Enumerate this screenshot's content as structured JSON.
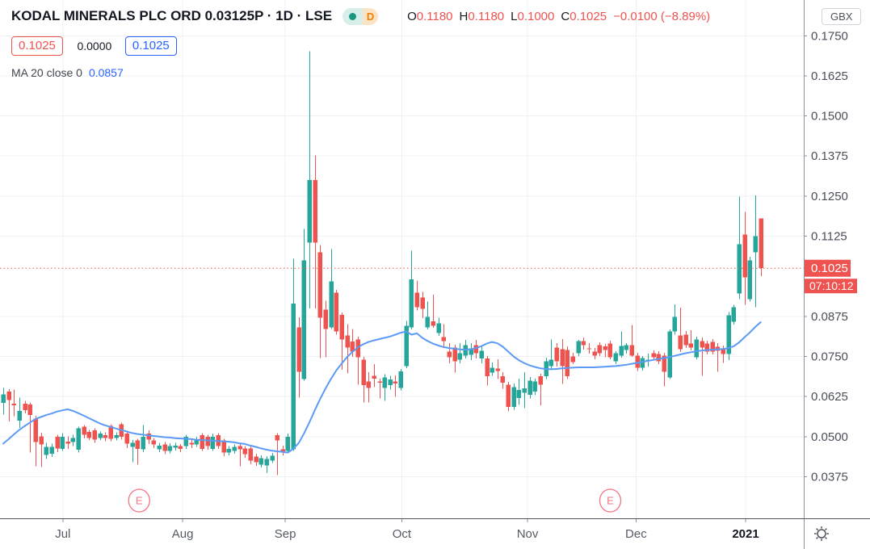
{
  "header": {
    "title": "KODAL MINERALS PLC ORD 0.03125P · 1D · LSE",
    "interval_badge": "D",
    "ohlc": {
      "items": [
        {
          "label": "O",
          "value": "0.1180"
        },
        {
          "label": "H",
          "value": "0.1180"
        },
        {
          "label": "L",
          "value": "0.1000"
        },
        {
          "label": "C",
          "value": "0.1025"
        }
      ],
      "change": "−0.0100 (−8.89%)"
    },
    "sell_price": "0.1025",
    "spread": "0.0000",
    "buy_price": "0.1025",
    "ma_label": "MA 20 close 0",
    "ma_value": "0.0857"
  },
  "price_axis": {
    "currency": "GBX",
    "last_price_label": "0.1025",
    "countdown": "07:10:12",
    "labels": [
      {
        "text": "0.1750",
        "price": 0.175
      },
      {
        "text": "0.1625",
        "price": 0.1625
      },
      {
        "text": "0.1500",
        "price": 0.15
      },
      {
        "text": "0.1375",
        "price": 0.1375
      },
      {
        "text": "0.1250",
        "price": 0.125
      },
      {
        "text": "0.1125",
        "price": 0.1125
      },
      {
        "text": "0.0875",
        "price": 0.0875
      },
      {
        "text": "0.0750",
        "price": 0.075
      },
      {
        "text": "0.0625",
        "price": 0.0625
      },
      {
        "text": "0.0500",
        "price": 0.05
      },
      {
        "text": "0.0375",
        "price": 0.0375
      }
    ]
  },
  "time_axis": {
    "labels": [
      {
        "text": "Jul",
        "index": 11.1,
        "bold": false
      },
      {
        "text": "Aug",
        "index": 33.4,
        "bold": false
      },
      {
        "text": "Sep",
        "index": 52.5,
        "bold": false
      },
      {
        "text": "Oct",
        "index": 74.2,
        "bold": false
      },
      {
        "text": "Nov",
        "index": 97.6,
        "bold": false
      },
      {
        "text": "Dec",
        "index": 117.8,
        "bold": false
      },
      {
        "text": "2021",
        "index": 138.2,
        "bold": true
      }
    ]
  },
  "chart_data": {
    "type": "candlestick",
    "symbol": "KODAL MINERALS PLC ORD 0.03125P",
    "interval": "1D",
    "exchange": "LSE",
    "currency": "GBX",
    "title": "KODAL MINERALS PLC ORD 0.03125P · 1D · LSE",
    "ylim": [
      0.0375,
      0.175
    ],
    "last_price": 0.1025,
    "last_ohlc": {
      "open": 0.118,
      "high": 0.118,
      "low": 0.1,
      "close": 0.1025,
      "change": -0.01,
      "change_pct": -8.89
    },
    "ma20_current": 0.0857,
    "earnings_marker_indices": [
      25.3,
      113
    ],
    "candles": [
      [
        0.0605,
        0.0652,
        0.0569,
        0.0632
      ],
      [
        0.064,
        0.0648,
        0.0547,
        0.0614
      ],
      [
        0.0602,
        0.0647,
        0.0564,
        0.0598
      ],
      [
        0.055,
        0.0622,
        0.0527,
        0.058
      ],
      [
        0.0603,
        0.0612,
        0.0572,
        0.0583
      ],
      [
        0.06,
        0.0606,
        0.045,
        0.0567
      ],
      [
        0.0556,
        0.0565,
        0.0408,
        0.0483
      ],
      [
        0.0501,
        0.0512,
        0.0405,
        0.0476
      ],
      [
        0.0443,
        0.0481,
        0.043,
        0.0468
      ],
      [
        0.0447,
        0.0478,
        0.0436,
        0.0468
      ],
      [
        0.05,
        0.0506,
        0.0452,
        0.0463
      ],
      [
        0.0462,
        0.0511,
        0.0455,
        0.05
      ],
      [
        0.0484,
        0.0501,
        0.0461,
        0.0478
      ],
      [
        0.0483,
        0.0506,
        0.047,
        0.0496
      ],
      [
        0.0459,
        0.0531,
        0.045,
        0.0526
      ],
      [
        0.0531,
        0.0536,
        0.0494,
        0.0506
      ],
      [
        0.0514,
        0.0521,
        0.0489,
        0.0496
      ],
      [
        0.052,
        0.0526,
        0.0481,
        0.049
      ],
      [
        0.0496,
        0.0516,
        0.0489,
        0.0509
      ],
      [
        0.0505,
        0.0513,
        0.0486,
        0.0495
      ],
      [
        0.0533,
        0.0538,
        0.0486,
        0.0493
      ],
      [
        0.0495,
        0.0513,
        0.0488,
        0.0505
      ],
      [
        0.0538,
        0.0543,
        0.0491,
        0.05
      ],
      [
        0.051,
        0.0516,
        0.0464,
        0.0478
      ],
      [
        0.0468,
        0.0489,
        0.042,
        0.048
      ],
      [
        0.0488,
        0.0493,
        0.0412,
        0.0462
      ],
      [
        0.046,
        0.0536,
        0.0452,
        0.05
      ],
      [
        0.051,
        0.0519,
        0.0477,
        0.049
      ],
      [
        0.0488,
        0.0496,
        0.0464,
        0.0476
      ],
      [
        0.046,
        0.0481,
        0.0451,
        0.0472
      ],
      [
        0.0476,
        0.0483,
        0.0445,
        0.0455
      ],
      [
        0.0455,
        0.0479,
        0.0448,
        0.047
      ],
      [
        0.0465,
        0.0481,
        0.0457,
        0.0472
      ],
      [
        0.047,
        0.0477,
        0.0451,
        0.0462
      ],
      [
        0.047,
        0.0506,
        0.0461,
        0.05
      ],
      [
        0.048,
        0.0493,
        0.0464,
        0.0476
      ],
      [
        0.0476,
        0.0499,
        0.0468,
        0.049
      ],
      [
        0.0505,
        0.0511,
        0.0455,
        0.0462
      ],
      [
        0.05,
        0.0506,
        0.0459,
        0.047
      ],
      [
        0.0462,
        0.0509,
        0.0455,
        0.05
      ],
      [
        0.0505,
        0.0511,
        0.0461,
        0.047
      ],
      [
        0.0488,
        0.0493,
        0.0439,
        0.045
      ],
      [
        0.045,
        0.0471,
        0.0441,
        0.0462
      ],
      [
        0.0455,
        0.0476,
        0.0447,
        0.0468
      ],
      [
        0.047,
        0.0479,
        0.0408,
        0.046
      ],
      [
        0.0463,
        0.0471,
        0.0434,
        0.0445
      ],
      [
        0.0463,
        0.0469,
        0.0414,
        0.0425
      ],
      [
        0.0438,
        0.0446,
        0.0409,
        0.042
      ],
      [
        0.0413,
        0.0441,
        0.0404,
        0.0433
      ],
      [
        0.041,
        0.0439,
        0.0386,
        0.043
      ],
      [
        0.0425,
        0.0449,
        0.0417,
        0.044
      ],
      [
        0.0505,
        0.0511,
        0.038,
        0.0488
      ],
      [
        0.046,
        0.0472,
        0.0441,
        0.045
      ],
      [
        0.0455,
        0.0509,
        0.0449,
        0.05
      ],
      [
        0.046,
        0.1055,
        0.0455,
        0.0915
      ],
      [
        0.084,
        0.0872,
        0.0622,
        0.0702
      ],
      [
        0.068,
        0.1148,
        0.0675,
        0.105
      ],
      [
        0.1105,
        0.1702,
        0.09,
        0.13
      ],
      [
        0.13,
        0.1377,
        0.09,
        0.1105
      ],
      [
        0.1075,
        0.1098,
        0.0745,
        0.0871
      ],
      [
        0.0896,
        0.0924,
        0.0747,
        0.0836
      ],
      [
        0.0841,
        0.1085,
        0.0835,
        0.0984
      ],
      [
        0.0949,
        0.0958,
        0.0818,
        0.0828
      ],
      [
        0.0879,
        0.0887,
        0.0708,
        0.0803
      ],
      [
        0.0816,
        0.0851,
        0.0697,
        0.0778
      ],
      [
        0.0796,
        0.0836,
        0.0749,
        0.0765
      ],
      [
        0.0803,
        0.0811,
        0.0662,
        0.0748
      ],
      [
        0.074,
        0.0749,
        0.0607,
        0.066
      ],
      [
        0.0672,
        0.0701,
        0.0606,
        0.0652
      ],
      [
        0.069,
        0.0726,
        0.0654,
        0.0681
      ],
      [
        0.0672,
        0.0681,
        0.0619,
        0.0668
      ],
      [
        0.0652,
        0.0694,
        0.0611,
        0.0685
      ],
      [
        0.066,
        0.0689,
        0.0647,
        0.0678
      ],
      [
        0.0672,
        0.0691,
        0.0624,
        0.0665
      ],
      [
        0.0652,
        0.0711,
        0.0644,
        0.0703
      ],
      [
        0.072,
        0.0861,
        0.0714,
        0.0846
      ],
      [
        0.0841,
        0.108,
        0.0834,
        0.099
      ],
      [
        0.0949,
        0.0986,
        0.0893,
        0.0904
      ],
      [
        0.0934,
        0.0951,
        0.0869,
        0.0899
      ],
      [
        0.0841,
        0.0921,
        0.0834,
        0.0873
      ],
      [
        0.086,
        0.0943,
        0.0839,
        0.0846
      ],
      [
        0.0823,
        0.0871,
        0.0814,
        0.0853
      ],
      [
        0.081,
        0.0851,
        0.0779,
        0.0798
      ],
      [
        0.0765,
        0.0791,
        0.0729,
        0.0748
      ],
      [
        0.0777,
        0.0786,
        0.0699,
        0.0735
      ],
      [
        0.074,
        0.0791,
        0.0729,
        0.076
      ],
      [
        0.0753,
        0.0801,
        0.0744,
        0.0785
      ],
      [
        0.0755,
        0.0791,
        0.0739,
        0.0775
      ],
      [
        0.0785,
        0.0801,
        0.0744,
        0.076
      ],
      [
        0.0743,
        0.0781,
        0.0729,
        0.0768
      ],
      [
        0.0743,
        0.0751,
        0.0659,
        0.0688
      ],
      [
        0.07,
        0.0731,
        0.0689,
        0.0715
      ],
      [
        0.0712,
        0.0741,
        0.0679,
        0.0705
      ],
      [
        0.0688,
        0.0701,
        0.0649,
        0.0668
      ],
      [
        0.0662,
        0.0671,
        0.0579,
        0.0592
      ],
      [
        0.0592,
        0.0666,
        0.0584,
        0.0654
      ],
      [
        0.062,
        0.0681,
        0.0599,
        0.0645
      ],
      [
        0.0637,
        0.0701,
        0.0589,
        0.065
      ],
      [
        0.063,
        0.0686,
        0.0619,
        0.0675
      ],
      [
        0.064,
        0.0681,
        0.0629,
        0.0672
      ],
      [
        0.0688,
        0.0696,
        0.0597,
        0.0662
      ],
      [
        0.0688,
        0.0746,
        0.0679,
        0.0735
      ],
      [
        0.072,
        0.0803,
        0.0709,
        0.074
      ],
      [
        0.0777,
        0.0791,
        0.0719,
        0.0735
      ],
      [
        0.0772,
        0.0804,
        0.0664,
        0.072
      ],
      [
        0.077,
        0.0781,
        0.0679,
        0.0688
      ],
      [
        0.075,
        0.0761,
        0.0726,
        0.0732
      ],
      [
        0.076,
        0.0801,
        0.0751,
        0.0798
      ],
      [
        0.0798,
        0.0809,
        0.0771,
        0.0785
      ],
      [
        0.0775,
        0.0791,
        0.0759,
        0.0772
      ],
      [
        0.0765,
        0.0776,
        0.0741,
        0.0752
      ],
      [
        0.0785,
        0.0794,
        0.0751,
        0.076
      ],
      [
        0.0782,
        0.0789,
        0.0748,
        0.077
      ],
      [
        0.079,
        0.0799,
        0.0741,
        0.0748
      ],
      [
        0.0735,
        0.0766,
        0.0726,
        0.076
      ],
      [
        0.0753,
        0.0828,
        0.0746,
        0.0783
      ],
      [
        0.077,
        0.0791,
        0.0759,
        0.0785
      ],
      [
        0.0785,
        0.0848,
        0.0749,
        0.0753
      ],
      [
        0.0752,
        0.0761,
        0.0704,
        0.0715
      ],
      [
        0.0715,
        0.0751,
        0.0706,
        0.0745
      ],
      [
        0.0735,
        0.0759,
        0.0719,
        0.074
      ],
      [
        0.076,
        0.0769,
        0.0739,
        0.0748
      ],
      [
        0.0758,
        0.0766,
        0.0726,
        0.0735
      ],
      [
        0.0752,
        0.0761,
        0.0657,
        0.0702
      ],
      [
        0.0685,
        0.0834,
        0.0679,
        0.0828
      ],
      [
        0.0828,
        0.0912,
        0.0818,
        0.0873
      ],
      [
        0.0816,
        0.0902,
        0.0764,
        0.0772
      ],
      [
        0.0818,
        0.0829,
        0.0776,
        0.0785
      ],
      [
        0.079,
        0.0832,
        0.0769,
        0.0778
      ],
      [
        0.0748,
        0.0811,
        0.0741,
        0.0803
      ],
      [
        0.0798,
        0.0809,
        0.069,
        0.0778
      ],
      [
        0.079,
        0.0799,
        0.0756,
        0.0765
      ],
      [
        0.0795,
        0.0804,
        0.0756,
        0.0765
      ],
      [
        0.078,
        0.0791,
        0.0702,
        0.0768
      ],
      [
        0.0775,
        0.0784,
        0.073,
        0.0757
      ],
      [
        0.0757,
        0.0889,
        0.0739,
        0.0878
      ],
      [
        0.0858,
        0.0911,
        0.0849,
        0.0904
      ],
      [
        0.0946,
        0.1249,
        0.0929,
        0.11
      ],
      [
        0.113,
        0.1201,
        0.0911,
        0.0997
      ],
      [
        0.0929,
        0.1061,
        0.0921,
        0.105
      ],
      [
        0.1075,
        0.1252,
        0.0904,
        0.1125
      ],
      [
        0.118,
        0.118,
        0.1,
        0.1025
      ]
    ],
    "ma20": [
      0.0478,
      0.0492,
      0.0507,
      0.0521,
      0.0533,
      0.0544,
      0.0555,
      0.0561,
      0.0567,
      0.0572,
      0.0578,
      0.0582,
      0.0585,
      0.058,
      0.0573,
      0.0565,
      0.0557,
      0.0549,
      0.0541,
      0.0535,
      0.053,
      0.0525,
      0.052,
      0.0516,
      0.0511,
      0.0508,
      0.0506,
      0.0504,
      0.0502,
      0.05,
      0.0498,
      0.0497,
      0.0495,
      0.0494,
      0.0493,
      0.0492,
      0.049,
      0.0489,
      0.0488,
      0.0487,
      0.0486,
      0.0485,
      0.0484,
      0.0482,
      0.0479,
      0.0477,
      0.0472,
      0.0468,
      0.0463,
      0.0459,
      0.0456,
      0.0454,
      0.0452,
      0.045,
      0.0462,
      0.048,
      0.051,
      0.0545,
      0.0582,
      0.0618,
      0.065,
      0.068,
      0.0706,
      0.0728,
      0.0748,
      0.0764,
      0.0778,
      0.0788,
      0.0795,
      0.08,
      0.0804,
      0.0808,
      0.0812,
      0.0818,
      0.0824,
      0.0828,
      0.0818,
      0.0822,
      0.0808,
      0.0798,
      0.079,
      0.0784,
      0.0779,
      0.0776,
      0.0774,
      0.0772,
      0.0771,
      0.0772,
      0.0776,
      0.0782,
      0.079,
      0.0795,
      0.0791,
      0.078,
      0.0765,
      0.075,
      0.0738,
      0.0729,
      0.0722,
      0.0717,
      0.0713,
      0.0711,
      0.071,
      0.0711,
      0.0713,
      0.0714,
      0.0715,
      0.0716,
      0.0716,
      0.0716,
      0.0716,
      0.0717,
      0.0718,
      0.0719,
      0.072,
      0.0722,
      0.0724,
      0.0727,
      0.073,
      0.0733,
      0.0736,
      0.0739,
      0.0742,
      0.0745,
      0.0748,
      0.0752,
      0.0756,
      0.076,
      0.0763,
      0.0766,
      0.0768,
      0.077,
      0.0771,
      0.0772,
      0.0773,
      0.0776,
      0.0782,
      0.0794,
      0.081,
      0.0825,
      0.0842,
      0.0857
    ]
  },
  "colors": {
    "up": "#26a69a",
    "down": "#ef5350",
    "ma": "#5b9bf5",
    "accent_blue": "#2962ff",
    "grid": "#eef0f3",
    "marker": "#f0767f",
    "axis_text": "#4a4e59",
    "time_text": "#555a64",
    "dark_text": "#131722",
    "axis_border": "#8f939c",
    "axis_line": "#50535e"
  }
}
